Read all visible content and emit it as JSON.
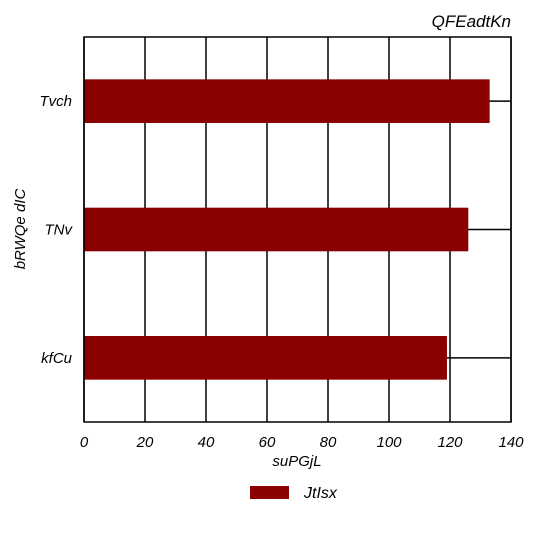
{
  "chart_data": {
    "type": "bar",
    "orientation": "horizontal",
    "title": "QFEadtKn",
    "xlabel": "suPGjL",
    "ylabel": "bRWQe dIC",
    "categories": [
      "kfCu",
      "TNv",
      "Tvch"
    ],
    "series": [
      {
        "name": "JtIsx",
        "values": [
          119,
          126,
          133
        ],
        "color": "#8b0000"
      }
    ],
    "xlim": [
      0,
      140
    ],
    "xticks": [
      "0",
      "20",
      "40",
      "60",
      "80",
      "100",
      "120",
      "140"
    ],
    "grid": true,
    "legend_position": "bottom-center"
  }
}
